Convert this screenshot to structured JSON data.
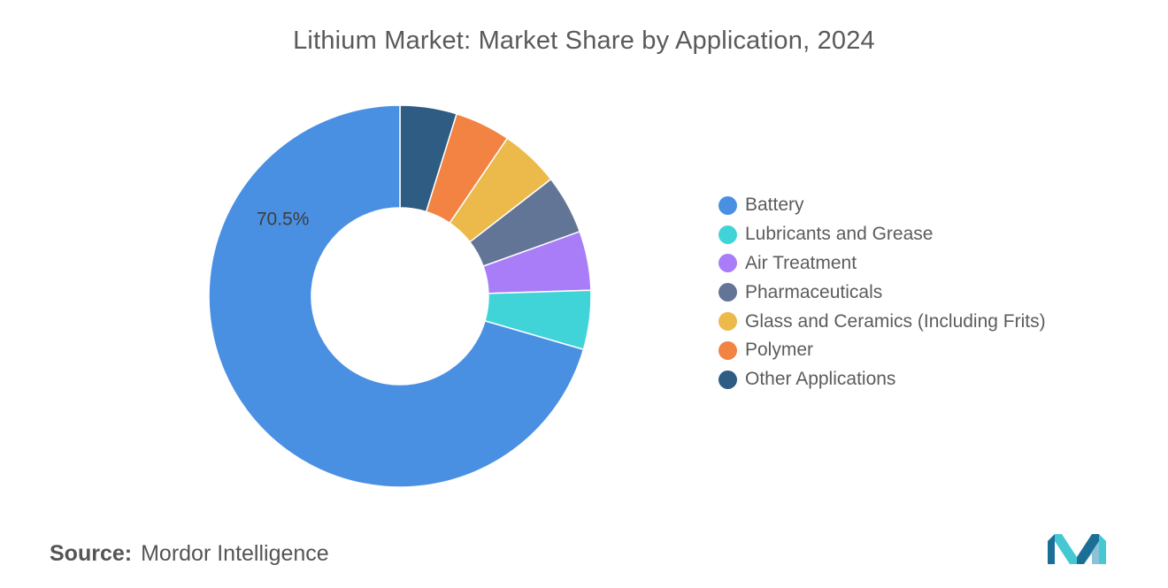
{
  "title": "Lithium Market: Market Share by Application, 2024",
  "source": {
    "prefix": "Source:",
    "name": "Mordor Intelligence"
  },
  "chart_data": {
    "type": "pie",
    "title": "Lithium Market: Market Share by Application, 2024",
    "donut": true,
    "legend_position": "right",
    "series": [
      {
        "name": "Battery",
        "value": 70.5,
        "color": "#4a90e2",
        "label": "70.5%"
      },
      {
        "name": "Lubricants and Grease",
        "value": 5.0,
        "color": "#40d4d8"
      },
      {
        "name": "Air Treatment",
        "value": 5.0,
        "color": "#a97cf8"
      },
      {
        "name": "Pharmaceuticals",
        "value": 5.0,
        "color": "#627597"
      },
      {
        "name": "Glass and Ceramics (Including Frits)",
        "value": 5.0,
        "color": "#ecb94b"
      },
      {
        "name": "Polymer",
        "value": 4.7,
        "color": "#f28343"
      },
      {
        "name": "Other Applications",
        "value": 4.8,
        "color": "#2e5c82"
      }
    ]
  },
  "logo": {
    "icon": "mordor-intelligence-logo",
    "colors": [
      "#1b6f97",
      "#45c8d2"
    ]
  }
}
